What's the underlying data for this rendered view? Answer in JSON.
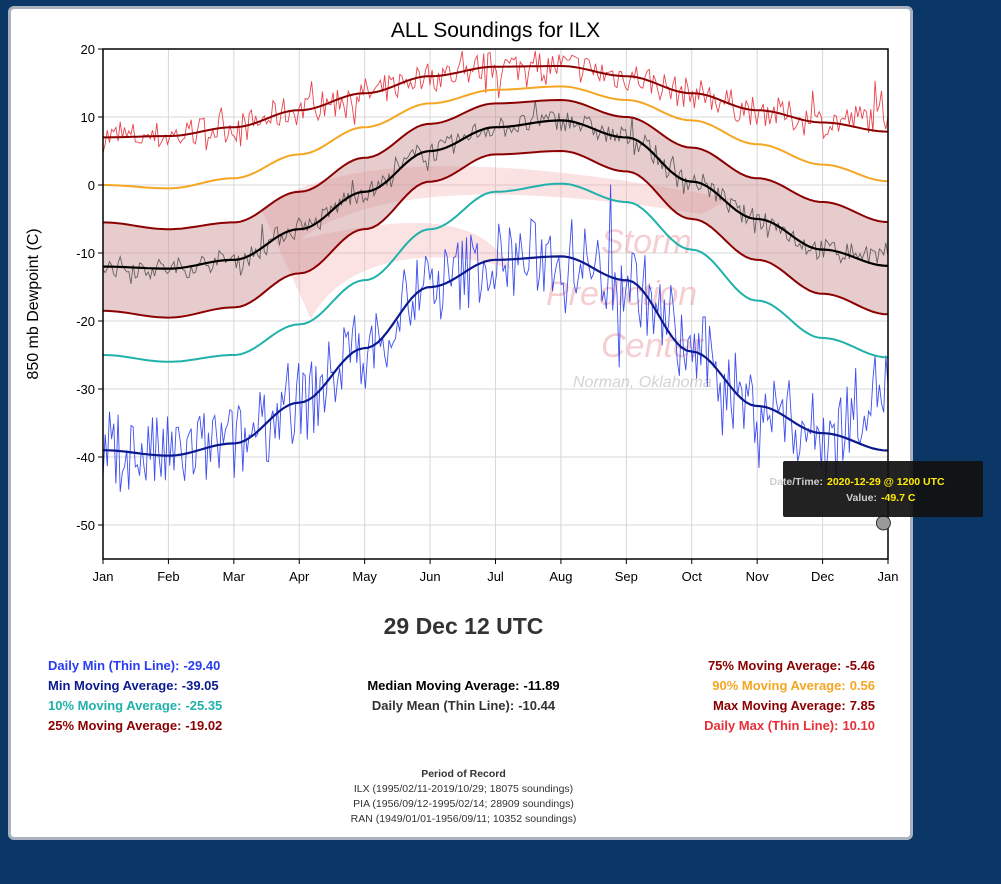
{
  "chart_data": {
    "type": "line",
    "title": "ALL Soundings for ILX",
    "xlabel": "",
    "ylabel": "850 mb Dewpoint (C)",
    "ylim": [
      -55,
      20
    ],
    "yticks": [
      20,
      10,
      0,
      -10,
      -20,
      -30,
      -40,
      -50
    ],
    "xticks": [
      "Jan",
      "Feb",
      "Mar",
      "Apr",
      "May",
      "Jun",
      "Jul",
      "Aug",
      "Sep",
      "Oct",
      "Nov",
      "Dec",
      "Jan"
    ],
    "grid": true,
    "x_units": "month (0 = Jan 1, 12 = Jan 1 of next year)",
    "series": [
      {
        "name": "Max Moving Average",
        "color": "#8b0000",
        "x": [
          0,
          1,
          2,
          3,
          4,
          5,
          6,
          7,
          8,
          9,
          10,
          11,
          12
        ],
        "values": [
          7.0,
          7.2,
          8.5,
          11.0,
          13.5,
          16.0,
          17.4,
          17.5,
          16.0,
          13.5,
          11.0,
          9.2,
          7.85
        ]
      },
      {
        "name": "90% Moving Average",
        "color": "#f5a623",
        "x": [
          0,
          1,
          2,
          3,
          4,
          5,
          6,
          7,
          8,
          9,
          10,
          11,
          12
        ],
        "values": [
          0.0,
          -0.5,
          1.0,
          4.5,
          8.5,
          12.0,
          14.0,
          14.5,
          12.5,
          9.5,
          6.0,
          3.0,
          0.56
        ]
      },
      {
        "name": "75% Moving Average",
        "color": "#8b0000",
        "x": [
          0,
          1,
          2,
          3,
          4,
          5,
          6,
          7,
          8,
          9,
          10,
          11,
          12
        ],
        "values": [
          -5.5,
          -6.5,
          -5.5,
          -1.0,
          4.0,
          9.0,
          12.0,
          12.5,
          10.0,
          5.5,
          1.0,
          -2.5,
          -5.46
        ]
      },
      {
        "name": "Median Moving Average",
        "color": "#000000",
        "x": [
          0,
          1,
          2,
          3,
          4,
          5,
          6,
          7,
          8,
          9,
          10,
          11,
          12
        ],
        "values": [
          -12.0,
          -12.3,
          -11.0,
          -6.5,
          -1.0,
          5.0,
          8.5,
          9.5,
          7.0,
          0.5,
          -5.0,
          -9.5,
          -11.89
        ]
      },
      {
        "name": "25% Moving Average",
        "color": "#8b0000",
        "x": [
          0,
          1,
          2,
          3,
          4,
          5,
          6,
          7,
          8,
          9,
          10,
          11,
          12
        ],
        "values": [
          -18.5,
          -19.5,
          -18.0,
          -13.0,
          -6.5,
          0.5,
          4.5,
          5.0,
          2.0,
          -5.0,
          -11.0,
          -16.0,
          -19.02
        ]
      },
      {
        "name": "10% Moving Average",
        "color": "#20b2aa",
        "x": [
          0,
          1,
          2,
          3,
          4,
          5,
          6,
          7,
          8,
          9,
          10,
          11,
          12
        ],
        "values": [
          -25.0,
          -26.0,
          -25.0,
          -20.5,
          -14.0,
          -6.5,
          -1.0,
          0.2,
          -2.5,
          -9.5,
          -17.0,
          -22.5,
          -25.35
        ]
      },
      {
        "name": "Min Moving Average",
        "color": "#0b1a8f",
        "x": [
          0,
          1,
          2,
          3,
          4,
          5,
          6,
          7,
          8,
          9,
          10,
          11,
          12
        ],
        "values": [
          -39.0,
          -39.8,
          -38.0,
          -32.0,
          -24.0,
          -15.0,
          -11.0,
          -10.5,
          -14.0,
          -24.5,
          -32.5,
          -36.5,
          -39.05
        ]
      },
      {
        "name": "Daily Max (Thin Line)",
        "color": "#e8303a",
        "amplitude": 2.3,
        "thin": true,
        "x": [
          0,
          1,
          2,
          3,
          4,
          5,
          6,
          7,
          8,
          9,
          10,
          11,
          12
        ],
        "values": [
          7.0,
          7.2,
          8.5,
          11.0,
          13.5,
          16.0,
          17.4,
          17.5,
          16.0,
          13.5,
          11.0,
          9.2,
          10.1
        ]
      },
      {
        "name": "Daily Mean (Thin Line)",
        "color": "#555555",
        "amplitude": 1.6,
        "thin": true,
        "x": [
          0,
          1,
          2,
          3,
          4,
          5,
          6,
          7,
          8,
          9,
          10,
          11,
          12
        ],
        "values": [
          -12.0,
          -12.3,
          -11.0,
          -6.5,
          -1.0,
          5.0,
          8.5,
          9.5,
          7.0,
          0.5,
          -5.0,
          -9.5,
          -10.44
        ]
      },
      {
        "name": "Daily Min (Thin Line)",
        "color": "#2a3cf0",
        "amplitude": 6.0,
        "thin": true,
        "x": [
          0,
          1,
          2,
          3,
          4,
          5,
          6,
          7,
          8,
          9,
          10,
          11,
          12
        ],
        "values": [
          -39.0,
          -39.8,
          -38.0,
          -32.0,
          -24.0,
          -15.0,
          -11.0,
          -10.5,
          -14.0,
          -24.5,
          -32.5,
          -36.5,
          -29.4
        ]
      }
    ],
    "band": {
      "between": [
        "25% Moving Average",
        "75% Moving Average"
      ],
      "color": "#c98f90"
    },
    "highlight": {
      "x": 11.93,
      "y": -49.7
    },
    "watermark": [
      "Storm",
      "Prediction",
      "Center",
      "Norman, Oklahoma"
    ]
  },
  "tooltip": {
    "datetime_label": "Date/Time:",
    "datetime_value": "2020-12-29 @ 1200 UTC",
    "value_label": "Value:",
    "value_value": "-49.7 C"
  },
  "selected_time": "29 Dec 12 UTC",
  "stats": {
    "daily_min": {
      "label": "Daily Min (Thin Line):",
      "value": "-29.40",
      "color": "#2a3cf0"
    },
    "min_ma": {
      "label": "Min Moving Average:",
      "value": "-39.05",
      "color": "#0b1a8f"
    },
    "p10_ma": {
      "label": "10% Moving Average:",
      "value": "-25.35",
      "color": "#20b2aa"
    },
    "p25_ma": {
      "label": "25% Moving Average:",
      "value": "-19.02",
      "color": "#8b0000"
    },
    "median_ma": {
      "label": "Median Moving Average:",
      "value": "-11.89",
      "color": "#000000"
    },
    "daily_mean": {
      "label": "Daily Mean (Thin Line):",
      "value": "-10.44",
      "color": "#333333"
    },
    "p75_ma": {
      "label": "75% Moving Average:",
      "value": "-5.46",
      "color": "#8b0000"
    },
    "p90_ma": {
      "label": "90% Moving Average:",
      "value": "0.56",
      "color": "#f5a623"
    },
    "max_ma": {
      "label": "Max Moving Average:",
      "value": "7.85",
      "color": "#8b0000"
    },
    "daily_max": {
      "label": "Daily Max (Thin Line):",
      "value": "10.10",
      "color": "#e8303a"
    }
  },
  "period_of_record": {
    "heading": "Period of Record",
    "lines": [
      "ILX (1995/02/11-2019/10/29; 18075 soundings)",
      "PIA (1956/09/12-1995/02/14; 28909 soundings)",
      "RAN (1949/01/01-1956/09/11; 10352 soundings)"
    ]
  }
}
